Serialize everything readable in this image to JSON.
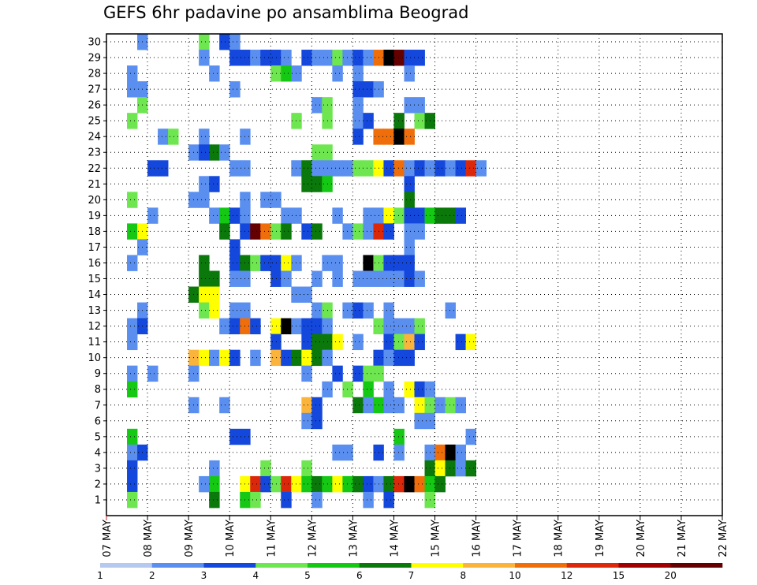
{
  "chart_data": {
    "type": "heatmap",
    "title": "GEFS 6hr padavine po ansamblima Beograd",
    "xlabel": "",
    "ylabel": "",
    "x_ticks": [
      "07 MAY",
      "08 MAY",
      "09 MAY",
      "10 MAY",
      "11 MAY",
      "12 MAY",
      "13 MAY",
      "14 MAY",
      "15 MAY",
      "16 MAY",
      "17 MAY",
      "18 MAY",
      "19 MAY",
      "20 MAY",
      "21 MAY",
      "22 MAY"
    ],
    "y_ticks": [
      "1",
      "2",
      "3",
      "4",
      "5",
      "6",
      "7",
      "8",
      "9",
      "10",
      "11",
      "12",
      "13",
      "14",
      "15",
      "16",
      "17",
      "18",
      "19",
      "20",
      "21",
      "22",
      "23",
      "24",
      "25",
      "26",
      "27",
      "28",
      "29",
      "30"
    ],
    "x_range": [
      "07 MAY 00z",
      "22 MAY 00z"
    ],
    "steps_per_day": 4,
    "y_range": [
      0,
      30
    ],
    "grid": true,
    "legend_position": "bottom",
    "colorbar": {
      "labels": [
        "1",
        "2",
        "3",
        "4",
        "5",
        "6",
        "7",
        "8",
        "10",
        "12",
        "15",
        "20"
      ],
      "colors": [
        "#b4c8f0",
        "#5a8ff0",
        "#1448dc",
        "#6ee650",
        "#14c814",
        "#0a780a",
        "#ffff00",
        "#fab43c",
        "#f06e0a",
        "#dc280a",
        "#a00000",
        "#640000"
      ]
    },
    "cells": [
      [
        30,
        3,
        1
      ],
      [
        30,
        9,
        3
      ],
      [
        30,
        11,
        2
      ],
      [
        30,
        12,
        1
      ],
      [
        29,
        9,
        1
      ],
      [
        29,
        12,
        2
      ],
      [
        29,
        13,
        2
      ],
      [
        29,
        14,
        1
      ],
      [
        29,
        15,
        2
      ],
      [
        29,
        16,
        2
      ],
      [
        29,
        17,
        1
      ],
      [
        29,
        19,
        2
      ],
      [
        29,
        20,
        1
      ],
      [
        29,
        21,
        1
      ],
      [
        29,
        22,
        3
      ],
      [
        29,
        23,
        1
      ],
      [
        29,
        24,
        2
      ],
      [
        29,
        25,
        1
      ],
      [
        29,
        26,
        8
      ],
      [
        29,
        27,
        12
      ],
      [
        29,
        28,
        11
      ],
      [
        29,
        29,
        2
      ],
      [
        29,
        30,
        2
      ],
      [
        28,
        2,
        1
      ],
      [
        28,
        10,
        1
      ],
      [
        28,
        16,
        3
      ],
      [
        28,
        17,
        4
      ],
      [
        28,
        18,
        1
      ],
      [
        28,
        22,
        1
      ],
      [
        28,
        24,
        1
      ],
      [
        28,
        29,
        1
      ],
      [
        27,
        2,
        1
      ],
      [
        27,
        3,
        1
      ],
      [
        27,
        12,
        1
      ],
      [
        27,
        24,
        2
      ],
      [
        27,
        25,
        2
      ],
      [
        27,
        26,
        1
      ],
      [
        26,
        3,
        3
      ],
      [
        26,
        20,
        1
      ],
      [
        26,
        21,
        3
      ],
      [
        26,
        24,
        1
      ],
      [
        26,
        29,
        1
      ],
      [
        26,
        30,
        1
      ],
      [
        25,
        2,
        3
      ],
      [
        25,
        21,
        3
      ],
      [
        25,
        18,
        3
      ],
      [
        25,
        24,
        1
      ],
      [
        25,
        25,
        2
      ],
      [
        25,
        28,
        5
      ],
      [
        25,
        30,
        3
      ],
      [
        25,
        31,
        5
      ],
      [
        24,
        5,
        1
      ],
      [
        24,
        6,
        3
      ],
      [
        24,
        9,
        1
      ],
      [
        24,
        13,
        1
      ],
      [
        24,
        24,
        2
      ],
      [
        24,
        26,
        8
      ],
      [
        24,
        27,
        8
      ],
      [
        24,
        28,
        12
      ],
      [
        24,
        29,
        8
      ],
      [
        23,
        8,
        1
      ],
      [
        23,
        9,
        2
      ],
      [
        23,
        10,
        5
      ],
      [
        23,
        11,
        1
      ],
      [
        23,
        20,
        3
      ],
      [
        23,
        21,
        3
      ],
      [
        22,
        4,
        2
      ],
      [
        22,
        5,
        2
      ],
      [
        22,
        12,
        1
      ],
      [
        22,
        13,
        1
      ],
      [
        22,
        18,
        1
      ],
      [
        22,
        19,
        5
      ],
      [
        22,
        20,
        1
      ],
      [
        22,
        21,
        1
      ],
      [
        22,
        22,
        1
      ],
      [
        22,
        23,
        1
      ],
      [
        22,
        24,
        3
      ],
      [
        22,
        25,
        3
      ],
      [
        22,
        26,
        6
      ],
      [
        22,
        27,
        2
      ],
      [
        22,
        28,
        8
      ],
      [
        22,
        29,
        1
      ],
      [
        22,
        30,
        2
      ],
      [
        22,
        31,
        1
      ],
      [
        22,
        32,
        2
      ],
      [
        22,
        33,
        1
      ],
      [
        22,
        34,
        2
      ],
      [
        22,
        35,
        9
      ],
      [
        22,
        36,
        1
      ],
      [
        21,
        9,
        1
      ],
      [
        21,
        10,
        2
      ],
      [
        21,
        19,
        5
      ],
      [
        21,
        20,
        5
      ],
      [
        21,
        21,
        4
      ],
      [
        21,
        29,
        2
      ],
      [
        20,
        2,
        3
      ],
      [
        20,
        8,
        1
      ],
      [
        20,
        9,
        1
      ],
      [
        20,
        13,
        1
      ],
      [
        20,
        15,
        1
      ],
      [
        20,
        16,
        1
      ],
      [
        20,
        29,
        5
      ],
      [
        19,
        4,
        1
      ],
      [
        19,
        10,
        1
      ],
      [
        19,
        11,
        4
      ],
      [
        19,
        12,
        2
      ],
      [
        19,
        13,
        1
      ],
      [
        19,
        17,
        1
      ],
      [
        19,
        18,
        1
      ],
      [
        19,
        22,
        1
      ],
      [
        19,
        25,
        1
      ],
      [
        19,
        26,
        1
      ],
      [
        19,
        27,
        6
      ],
      [
        19,
        28,
        3
      ],
      [
        19,
        29,
        2
      ],
      [
        19,
        30,
        2
      ],
      [
        19,
        31,
        4
      ],
      [
        19,
        32,
        5
      ],
      [
        19,
        33,
        5
      ],
      [
        19,
        34,
        2
      ],
      [
        18,
        2,
        4
      ],
      [
        18,
        3,
        6
      ],
      [
        18,
        11,
        5
      ],
      [
        18,
        13,
        2
      ],
      [
        18,
        14,
        11
      ],
      [
        18,
        15,
        8
      ],
      [
        18,
        16,
        3
      ],
      [
        18,
        17,
        5
      ],
      [
        18,
        19,
        2
      ],
      [
        18,
        20,
        5
      ],
      [
        18,
        23,
        1
      ],
      [
        18,
        24,
        3
      ],
      [
        18,
        25,
        1
      ],
      [
        18,
        26,
        9
      ],
      [
        18,
        27,
        2
      ],
      [
        18,
        29,
        1
      ],
      [
        18,
        30,
        1
      ],
      [
        17,
        3,
        1
      ],
      [
        17,
        12,
        2
      ],
      [
        17,
        29,
        1
      ],
      [
        16,
        2,
        1
      ],
      [
        16,
        9,
        5
      ],
      [
        16,
        12,
        2
      ],
      [
        16,
        13,
        5
      ],
      [
        16,
        14,
        3
      ],
      [
        16,
        15,
        2
      ],
      [
        16,
        16,
        2
      ],
      [
        16,
        17,
        6
      ],
      [
        16,
        18,
        1
      ],
      [
        16,
        21,
        1
      ],
      [
        16,
        22,
        1
      ],
      [
        16,
        25,
        12
      ],
      [
        16,
        26,
        3
      ],
      [
        16,
        27,
        2
      ],
      [
        16,
        28,
        2
      ],
      [
        16,
        29,
        2
      ],
      [
        15,
        9,
        5
      ],
      [
        15,
        10,
        5
      ],
      [
        15,
        12,
        1
      ],
      [
        15,
        13,
        1
      ],
      [
        15,
        16,
        2
      ],
      [
        15,
        17,
        1
      ],
      [
        15,
        20,
        1
      ],
      [
        15,
        22,
        1
      ],
      [
        15,
        24,
        1
      ],
      [
        15,
        25,
        1
      ],
      [
        15,
        26,
        1
      ],
      [
        15,
        27,
        1
      ],
      [
        15,
        28,
        1
      ],
      [
        15,
        29,
        2
      ],
      [
        15,
        30,
        1
      ],
      [
        14,
        8,
        5
      ],
      [
        14,
        9,
        6
      ],
      [
        14,
        10,
        6
      ],
      [
        14,
        18,
        1
      ],
      [
        14,
        19,
        1
      ],
      [
        13,
        3,
        1
      ],
      [
        13,
        9,
        3
      ],
      [
        13,
        10,
        6
      ],
      [
        13,
        12,
        1
      ],
      [
        13,
        13,
        1
      ],
      [
        13,
        20,
        1
      ],
      [
        13,
        21,
        3
      ],
      [
        13,
        23,
        1
      ],
      [
        13,
        24,
        2
      ],
      [
        13,
        25,
        1
      ],
      [
        13,
        27,
        1
      ],
      [
        13,
        33,
        1
      ],
      [
        12,
        2,
        1
      ],
      [
        12,
        3,
        2
      ],
      [
        12,
        11,
        1
      ],
      [
        12,
        12,
        2
      ],
      [
        12,
        13,
        8
      ],
      [
        12,
        14,
        2
      ],
      [
        12,
        16,
        6
      ],
      [
        12,
        17,
        12
      ],
      [
        12,
        18,
        1
      ],
      [
        12,
        19,
        2
      ],
      [
        12,
        20,
        2
      ],
      [
        12,
        21,
        1
      ],
      [
        12,
        26,
        3
      ],
      [
        12,
        27,
        1
      ],
      [
        12,
        28,
        1
      ],
      [
        12,
        29,
        1
      ],
      [
        12,
        30,
        3
      ],
      [
        11,
        2,
        1
      ],
      [
        11,
        16,
        2
      ],
      [
        11,
        19,
        2
      ],
      [
        11,
        20,
        5
      ],
      [
        11,
        21,
        5
      ],
      [
        11,
        22,
        6
      ],
      [
        11,
        24,
        1
      ],
      [
        11,
        27,
        2
      ],
      [
        11,
        28,
        3
      ],
      [
        11,
        29,
        7
      ],
      [
        11,
        30,
        2
      ],
      [
        11,
        34,
        2
      ],
      [
        11,
        35,
        6
      ],
      [
        10,
        8,
        7
      ],
      [
        10,
        9,
        6
      ],
      [
        10,
        10,
        1
      ],
      [
        10,
        11,
        6
      ],
      [
        10,
        12,
        2
      ],
      [
        10,
        14,
        1
      ],
      [
        10,
        16,
        7
      ],
      [
        10,
        17,
        2
      ],
      [
        10,
        18,
        5
      ],
      [
        10,
        19,
        6
      ],
      [
        10,
        20,
        5
      ],
      [
        10,
        21,
        1
      ],
      [
        10,
        26,
        2
      ],
      [
        10,
        27,
        1
      ],
      [
        10,
        28,
        2
      ],
      [
        10,
        29,
        2
      ],
      [
        9,
        2,
        1
      ],
      [
        9,
        4,
        1
      ],
      [
        9,
        8,
        1
      ],
      [
        9,
        19,
        1
      ],
      [
        9,
        22,
        2
      ],
      [
        9,
        24,
        2
      ],
      [
        9,
        25,
        3
      ],
      [
        9,
        26,
        3
      ],
      [
        8,
        2,
        4
      ],
      [
        8,
        21,
        1
      ],
      [
        8,
        23,
        3
      ],
      [
        8,
        25,
        4
      ],
      [
        8,
        27,
        1
      ],
      [
        8,
        29,
        6
      ],
      [
        8,
        30,
        2
      ],
      [
        8,
        31,
        1
      ],
      [
        7,
        8,
        1
      ],
      [
        7,
        11,
        1
      ],
      [
        7,
        19,
        7
      ],
      [
        7,
        20,
        2
      ],
      [
        7,
        24,
        5
      ],
      [
        7,
        25,
        1
      ],
      [
        7,
        26,
        4
      ],
      [
        7,
        27,
        1
      ],
      [
        7,
        28,
        1
      ],
      [
        7,
        30,
        6
      ],
      [
        7,
        31,
        3
      ],
      [
        7,
        32,
        1
      ],
      [
        7,
        33,
        3
      ],
      [
        7,
        34,
        1
      ],
      [
        6,
        19,
        1
      ],
      [
        6,
        20,
        2
      ],
      [
        6,
        30,
        1
      ],
      [
        6,
        31,
        1
      ],
      [
        5,
        2,
        4
      ],
      [
        5,
        12,
        2
      ],
      [
        5,
        13,
        2
      ],
      [
        5,
        28,
        4
      ],
      [
        5,
        35,
        1
      ],
      [
        4,
        2,
        1
      ],
      [
        4,
        3,
        2
      ],
      [
        4,
        22,
        1
      ],
      [
        4,
        23,
        1
      ],
      [
        4,
        26,
        2
      ],
      [
        4,
        28,
        1
      ],
      [
        4,
        31,
        1
      ],
      [
        4,
        32,
        8
      ],
      [
        4,
        33,
        12
      ],
      [
        4,
        34,
        1
      ],
      [
        3,
        2,
        2
      ],
      [
        3,
        10,
        1
      ],
      [
        3,
        15,
        3
      ],
      [
        3,
        19,
        3
      ],
      [
        3,
        31,
        5
      ],
      [
        3,
        32,
        6
      ],
      [
        3,
        33,
        5
      ],
      [
        3,
        34,
        1
      ],
      [
        3,
        35,
        5
      ],
      [
        2,
        2,
        2
      ],
      [
        2,
        9,
        1
      ],
      [
        2,
        10,
        4
      ],
      [
        2,
        13,
        6
      ],
      [
        2,
        14,
        9
      ],
      [
        2,
        15,
        2
      ],
      [
        2,
        16,
        3
      ],
      [
        2,
        17,
        9
      ],
      [
        2,
        18,
        6
      ],
      [
        2,
        19,
        4
      ],
      [
        2,
        20,
        5
      ],
      [
        2,
        21,
        4
      ],
      [
        2,
        22,
        6
      ],
      [
        2,
        23,
        4
      ],
      [
        2,
        24,
        5
      ],
      [
        2,
        25,
        2
      ],
      [
        2,
        26,
        1
      ],
      [
        2,
        27,
        5
      ],
      [
        2,
        28,
        9
      ],
      [
        2,
        29,
        12
      ],
      [
        2,
        30,
        8
      ],
      [
        2,
        31,
        4
      ],
      [
        2,
        32,
        5
      ],
      [
        1,
        2,
        3
      ],
      [
        1,
        10,
        5
      ],
      [
        1,
        13,
        4
      ],
      [
        1,
        14,
        3
      ],
      [
        1,
        17,
        2
      ],
      [
        1,
        20,
        1
      ],
      [
        1,
        25,
        1
      ],
      [
        1,
        27,
        2
      ],
      [
        1,
        31,
        3
      ]
    ]
  }
}
